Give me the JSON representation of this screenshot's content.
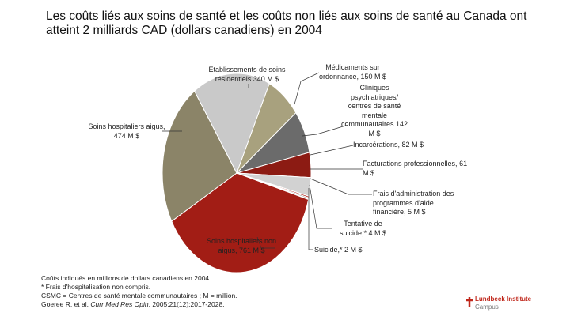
{
  "title": "Les coûts liés aux soins de santé et les coûts non liés aux soins de santé au Canada ont atteint 2 milliards CAD (dollars canadiens) en 2004",
  "chart_data": {
    "type": "pie",
    "values": [
      150,
      142,
      82,
      61,
      5,
      4,
      2,
      761,
      474,
      340
    ],
    "value_labels": [
      "Médicaments sur ordonnance, 150 M $",
      "Cliniques psychiatriques/ centres de santé mentale communautaires 142 M $",
      "Incarcérations, 82 M $",
      "Facturations professionnelles, 61 M $",
      "Frais d'administration des programmes d'aide financière, 5 M $",
      "Tentative de suicide,* 4 M $",
      "Suicide,* 2 M $",
      "Soins hospitaliers non aigus, 761 M $",
      "Soins hospitaliers aigus, 474 M $",
      "Établissements de soins résidentiels 340 M $"
    ],
    "colors": [
      "#a8a17e",
      "#6b6b6b",
      "#8c1b13",
      "#d2d2d2",
      "#b02a20",
      "#7a7a7a",
      "#555555",
      "#a21d15",
      "#8b8468",
      "#c9c9c9"
    ]
  },
  "notes": [
    "Coûts indiqués en millions de dollars canadiens en 2004.",
    "* Frais d'hospitalisation non compris.",
    "CSMC = Centres de santé mentale communautaires ; M = million."
  ],
  "citation": [
    "Goeree R, et al. ",
    "Curr Med Res Opin",
    ". 2005;21(12):2017-2028."
  ],
  "logo": [
    "Lundbeck Institute",
    "Campus"
  ]
}
